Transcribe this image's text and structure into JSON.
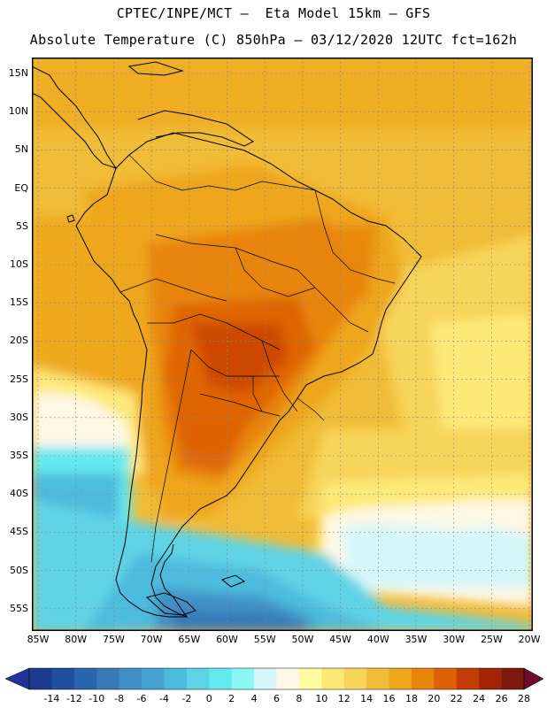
{
  "header": {
    "line1": "CPTEC/INPE/MCT –  Eta Model 15km – GFS",
    "line2": "Absolute Temperature (C) 850hPa – 03/12/2020 12UTC fct=162h"
  },
  "map": {
    "lat_labels": [
      "15N",
      "10N",
      "5N",
      "EQ",
      "5S",
      "10S",
      "15S",
      "20S",
      "25S",
      "30S",
      "35S",
      "40S",
      "45S",
      "50S",
      "55S"
    ],
    "lon_labels": [
      "85W",
      "80W",
      "75W",
      "70W",
      "65W",
      "60W",
      "55W",
      "50W",
      "45W",
      "40W",
      "35W",
      "30W",
      "25W",
      "20W"
    ]
  },
  "colorbar": {
    "labels": [
      "-14",
      "-12",
      "-10",
      "-8",
      "-6",
      "-4",
      "-2",
      "0",
      "2",
      "4",
      "6",
      "8",
      "10",
      "12",
      "14",
      "16",
      "18",
      "20",
      "22",
      "24",
      "26",
      "28"
    ],
    "colors": [
      "#1e3a8c",
      "#1f4f9e",
      "#2a66ad",
      "#3679b9",
      "#3f8fc6",
      "#46a3d2",
      "#4dbbdd",
      "#5fd3e6",
      "#66e8ef",
      "#8af6f6",
      "#d6f7fa",
      "#fff8e6",
      "#fffca0",
      "#fde978",
      "#f7d45a",
      "#f1bc38",
      "#eea61a",
      "#e8850c",
      "#dd5f06",
      "#c43c06",
      "#a32405",
      "#7d1a0d"
    ],
    "min_color": "#223399",
    "max_color": "#6e0b2a"
  }
}
